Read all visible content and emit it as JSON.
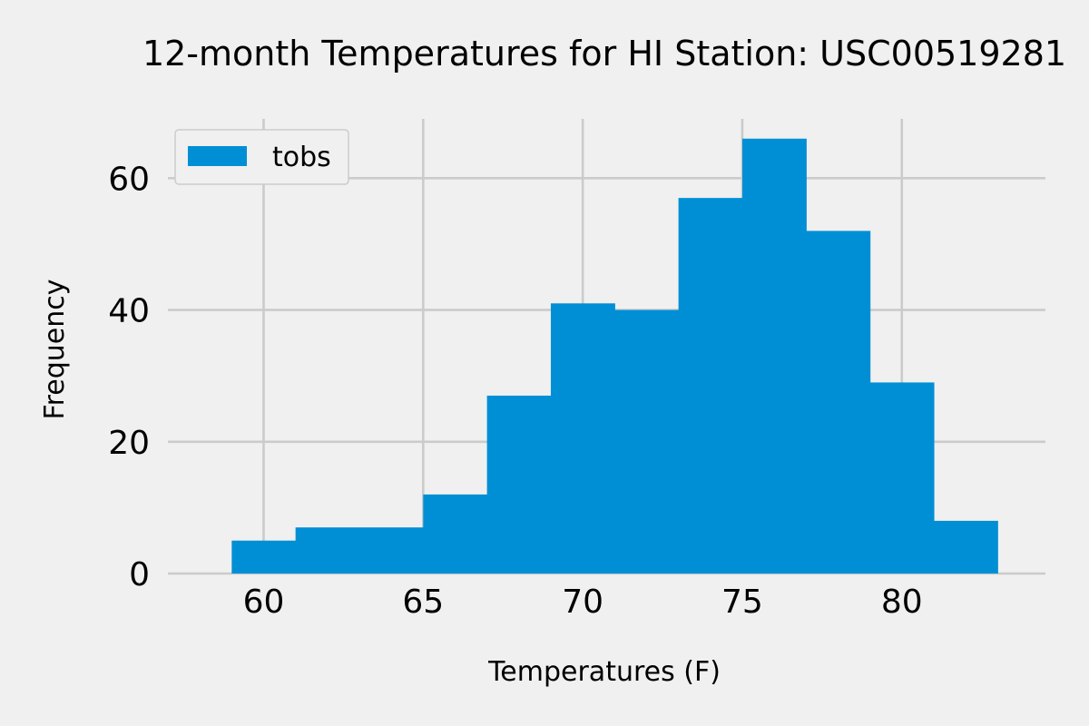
{
  "chart_data": {
    "type": "bar",
    "title": "12-month Temperatures for HI Station: USC00519281",
    "xlabel": "Temperatures (F)",
    "ylabel": "Frequency",
    "bin_edges": [
      59,
      61,
      63,
      65,
      67,
      69,
      71,
      73,
      75,
      77,
      79,
      81,
      83
    ],
    "series": [
      {
        "name": "tobs",
        "values": [
          5,
          7,
          7,
          12,
          27,
          41,
          40,
          57,
          66,
          52,
          29,
          8
        ]
      }
    ],
    "xlim": [
      57,
      84.5
    ],
    "ylim": [
      0,
      69
    ],
    "x_ticks": [
      60,
      65,
      70,
      75,
      80
    ],
    "x_tick_labels": [
      "60",
      "65",
      "70",
      "75",
      "80"
    ],
    "y_ticks": [
      0,
      20,
      40,
      60
    ],
    "y_tick_labels": [
      "0",
      "20",
      "40",
      "60"
    ],
    "grid": true,
    "legend_position": "top-left",
    "colors": {
      "bars": "#008fd5",
      "background": "#f0f0f0",
      "grid": "#cbcbcb",
      "text": "#000000"
    }
  }
}
